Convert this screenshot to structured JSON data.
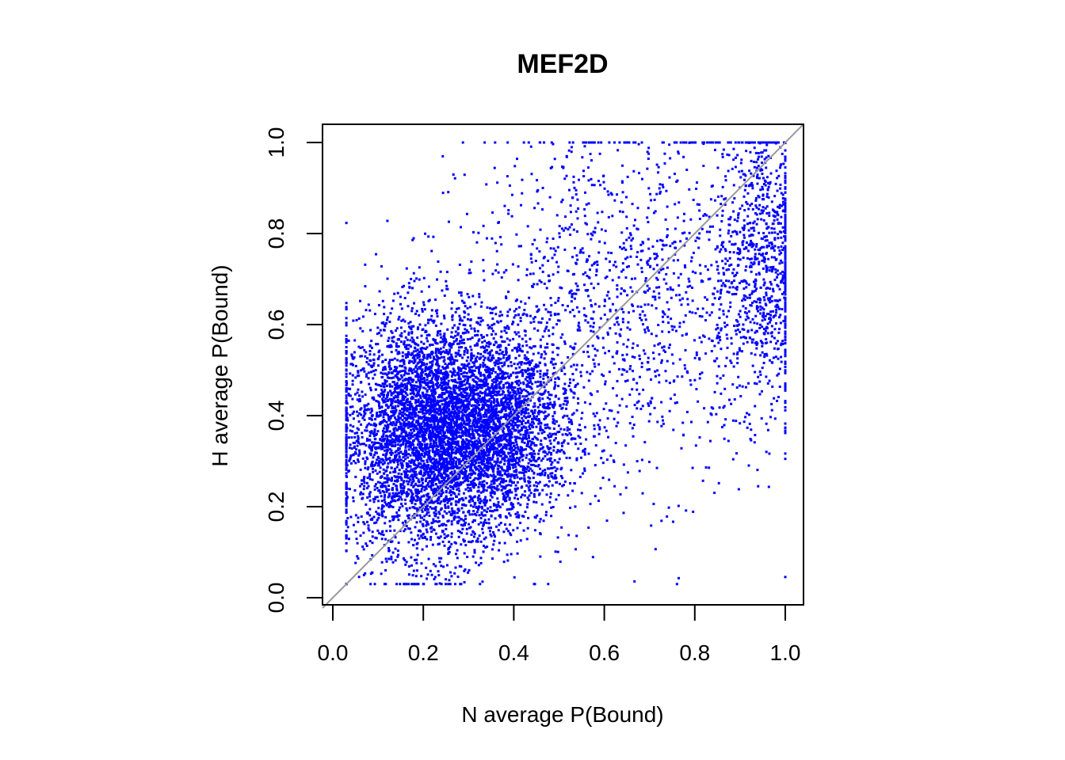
{
  "chart_data": {
    "type": "scatter",
    "title": "MEF2D",
    "xlabel": "N average P(Bound)",
    "ylabel": "H average P(Bound)",
    "xlim": [
      0.0,
      1.0
    ],
    "ylim": [
      0.0,
      1.0
    ],
    "x_ticks": [
      "0.0",
      "0.2",
      "0.4",
      "0.6",
      "0.8",
      "1.0"
    ],
    "y_ticks": [
      "0.0",
      "0.2",
      "0.4",
      "0.6",
      "0.8",
      "1.0"
    ],
    "grid": false,
    "legend": "none",
    "reference_line": {
      "type": "identity",
      "slope": 1,
      "intercept": 0,
      "color": "#999999"
    },
    "point_color": "#0000ff",
    "series": [
      {
        "points_description_clusters": [
          {
            "x_center": 0.22,
            "y_center": 0.36,
            "x_sd": 0.1,
            "y_sd": 0.13,
            "weight": 0.55
          },
          {
            "x_center": 0.38,
            "y_center": 0.38,
            "x_sd": 0.08,
            "y_sd": 0.1,
            "weight": 0.2
          },
          {
            "x_center": 0.95,
            "y_center": 0.75,
            "x_sd": 0.05,
            "y_sd": 0.17,
            "weight": 0.1
          },
          {
            "x_center": 0.65,
            "y_center": 0.65,
            "x_sd": 0.18,
            "y_sd": 0.2,
            "weight": 0.15
          }
        ]
      }
    ]
  }
}
